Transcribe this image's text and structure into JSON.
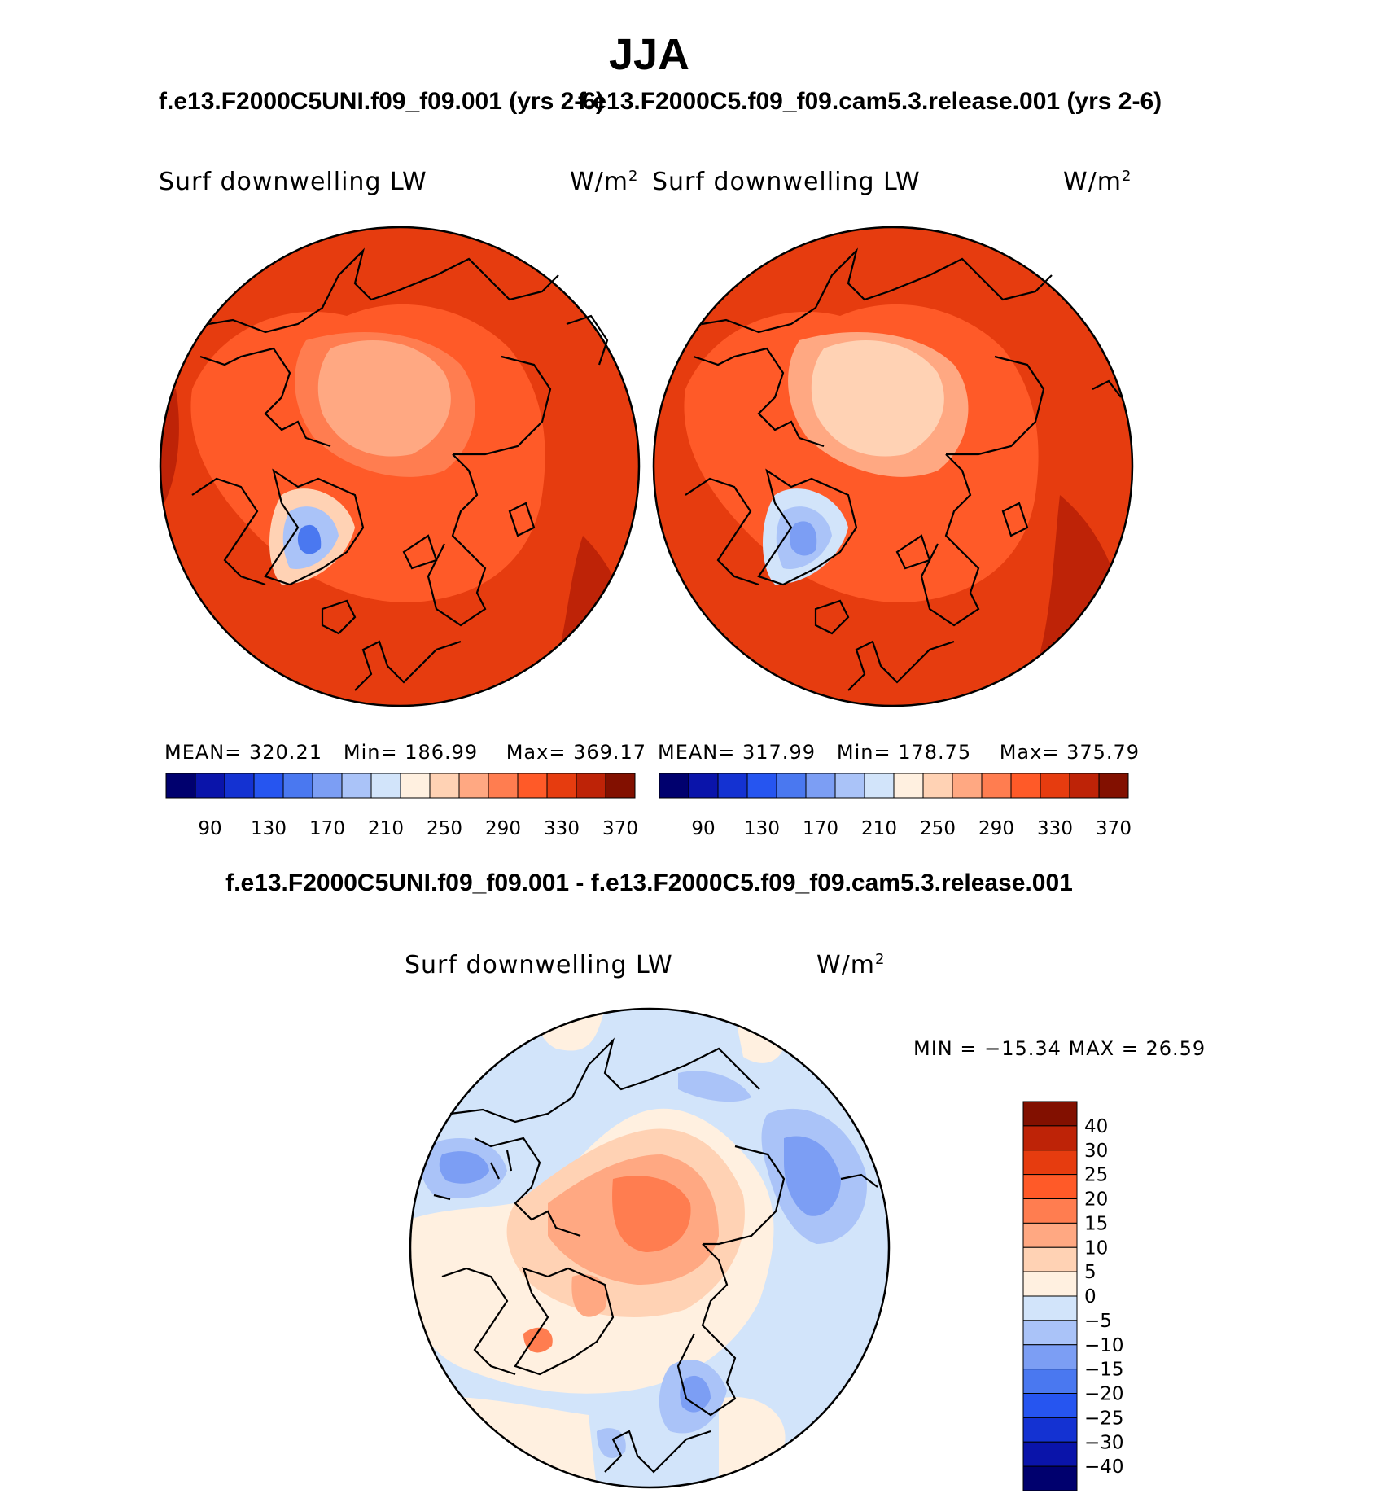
{
  "title": "JJA",
  "panels": [
    {
      "case_title": "f.e13.F2000C5UNI.f09_f09.001 (yrs 2-6)",
      "variable": "Surf downwelling LW",
      "units": "W/m",
      "units_exp": "2",
      "mean_label": "MEAN=",
      "mean": "320.21",
      "min_label": "Min=",
      "min": "186.99",
      "max_label": "Max=",
      "max": "369.17"
    },
    {
      "case_title": "f.e13.F2000C5.f09_f09.cam5.3.release.001 (yrs 2-6)",
      "variable": "Surf downwelling LW",
      "units": "W/m",
      "units_exp": "2",
      "mean_label": "MEAN=",
      "mean": "317.99",
      "min_label": "Min=",
      "min": "178.75",
      "max_label": "Max=",
      "max": "375.79"
    }
  ],
  "abs_colorbar": {
    "colors": [
      "#00006e",
      "#0a14aa",
      "#1432d2",
      "#2655f0",
      "#4a78f0",
      "#7c9ef4",
      "#aac3f8",
      "#d2e4fa",
      "#fff0e0",
      "#ffd2b4",
      "#ffa882",
      "#ff7d50",
      "#ff5a28",
      "#e63c0f",
      "#be2307",
      "#821000"
    ],
    "tick_labels": [
      "90",
      "130",
      "170",
      "210",
      "250",
      "290",
      "330",
      "370"
    ]
  },
  "diff": {
    "title": "f.e13.F2000C5UNI.f09_f09.001 - f.e13.F2000C5.f09_f09.cam5.3.release.001",
    "variable": "Surf downwelling LW",
    "units": "W/m",
    "units_exp": "2",
    "minmax_text": "MIN = −15.34 MAX =   26.59",
    "colorbar": {
      "colors": [
        "#00006e",
        "#0a14aa",
        "#1432d2",
        "#2655f0",
        "#4a78f0",
        "#7c9ef4",
        "#aac3f8",
        "#d2e4fa",
        "#fff0e0",
        "#ffd2b4",
        "#ffa882",
        "#ff7d50",
        "#ff5a28",
        "#e63c0f",
        "#be2307",
        "#821000"
      ],
      "tick_labels": [
        "40",
        "30",
        "25",
        "20",
        "15",
        "10",
        "5",
        "0",
        "−5",
        "−10",
        "−15",
        "−20",
        "−25",
        "−30",
        "−40"
      ]
    }
  }
}
